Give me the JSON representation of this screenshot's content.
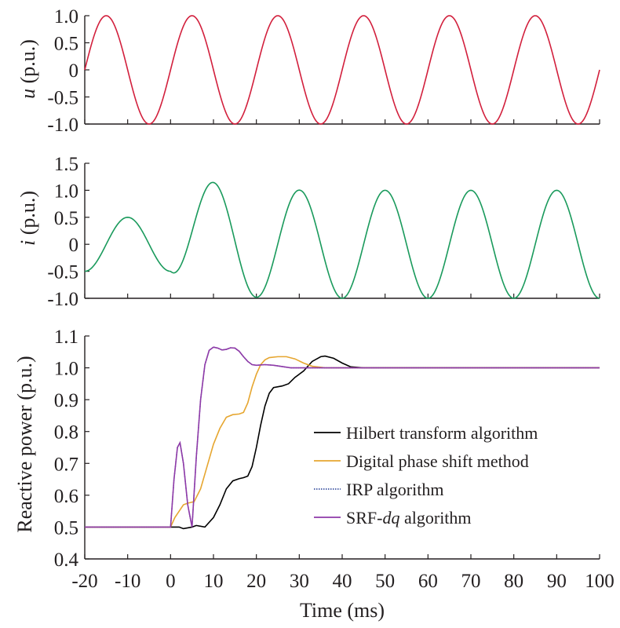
{
  "colors": {
    "voltage": "#d21f3c",
    "current": "#1a9a5c",
    "hilbert": "#000000",
    "digital_phase_shift": "#e6a630",
    "irp": "#1f3a93",
    "srf_dq": "#8e3aa8",
    "axis": "#231f20"
  },
  "chart_data": [
    {
      "type": "line",
      "id": "voltage",
      "ylabel_var": "u",
      "ylabel_unit": " (p.u.)",
      "ylim": [
        -1.0,
        1.0
      ],
      "xlim": [
        -20,
        100
      ],
      "yticks": [
        "1.0",
        "0.5",
        "0",
        "-0.5",
        "-1.0"
      ],
      "series": [
        {
          "description_peaks": "sinusoid, amplitude 1.0, period 20 ms, peaks at -15, 5, 25, 45, 65, 85 ms",
          "amplitude": 1.0,
          "period_ms": 20,
          "first_peak_ms": -15
        }
      ]
    },
    {
      "type": "line",
      "id": "current",
      "ylabel_var": "i",
      "ylabel_unit": " (p.u.)",
      "ylim": [
        -1.0,
        1.5
      ],
      "xlim": [
        -20,
        100
      ],
      "yticks": [
        "1.5",
        "1.0",
        "0.5",
        "0",
        "-0.5",
        "-1.0"
      ],
      "series": [
        {
          "amplitude_before_step": 0.5,
          "amplitude_after_step": 1.0,
          "step_time_ms": 0,
          "period_ms": 20,
          "peak_before_step_ms": -10,
          "peaks_after_step_ms": [
            10,
            30,
            50,
            70,
            90
          ],
          "overshoot_peak": 1.05
        }
      ]
    },
    {
      "type": "line",
      "id": "reactive_power",
      "ylabel": "Reactive power (p.u.)",
      "xlabel": "Time (ms)",
      "ylim": [
        0.4,
        1.1
      ],
      "xlim": [
        -20,
        100
      ],
      "yticks": [
        "1.1",
        "1.0",
        "0.9",
        "0.8",
        "0.7",
        "0.6",
        "0.5",
        "0.4"
      ],
      "xticks": [
        "-20",
        "-10",
        "0",
        "10",
        "20",
        "30",
        "40",
        "50",
        "60",
        "70",
        "80",
        "90",
        "100"
      ],
      "legend_position": "lower-right",
      "series": [
        {
          "key": "hilbert",
          "name": "Hilbert transform algorithm",
          "points": [
            [
              -20,
              0.5
            ],
            [
              0,
              0.5
            ],
            [
              2,
              0.5
            ],
            [
              3,
              0.495
            ],
            [
              5,
              0.5
            ],
            [
              6,
              0.505
            ],
            [
              8,
              0.5
            ],
            [
              10,
              0.53
            ],
            [
              11.5,
              0.57
            ],
            [
              13,
              0.62
            ],
            [
              14.5,
              0.645
            ],
            [
              16,
              0.652
            ],
            [
              17,
              0.655
            ],
            [
              18,
              0.66
            ],
            [
              19,
              0.69
            ],
            [
              20,
              0.75
            ],
            [
              21,
              0.82
            ],
            [
              22,
              0.88
            ],
            [
              23,
              0.92
            ],
            [
              24,
              0.938
            ],
            [
              26,
              0.943
            ],
            [
              27.5,
              0.95
            ],
            [
              29,
              0.97
            ],
            [
              31,
              0.99
            ],
            [
              33,
              1.02
            ],
            [
              35,
              1.035
            ],
            [
              36,
              1.037
            ],
            [
              38,
              1.03
            ],
            [
              40,
              1.015
            ],
            [
              42,
              1.003
            ],
            [
              45,
              1.0
            ],
            [
              100,
              1.0
            ]
          ]
        },
        {
          "key": "digital_phase_shift",
          "name": "Digital phase shift method",
          "points": [
            [
              -20,
              0.5
            ],
            [
              0,
              0.5
            ],
            [
              1,
              0.53
            ],
            [
              2,
              0.55
            ],
            [
              3,
              0.57
            ],
            [
              4,
              0.575
            ],
            [
              5.5,
              0.58
            ],
            [
              7,
              0.62
            ],
            [
              8.5,
              0.69
            ],
            [
              10,
              0.76
            ],
            [
              11.5,
              0.81
            ],
            [
              13,
              0.845
            ],
            [
              14.5,
              0.853
            ],
            [
              16,
              0.855
            ],
            [
              17,
              0.86
            ],
            [
              18,
              0.89
            ],
            [
              19,
              0.94
            ],
            [
              20,
              0.98
            ],
            [
              21,
              1.01
            ],
            [
              22,
              1.025
            ],
            [
              23,
              1.032
            ],
            [
              25,
              1.035
            ],
            [
              27,
              1.035
            ],
            [
              29,
              1.028
            ],
            [
              31,
              1.015
            ],
            [
              33,
              1.005
            ],
            [
              36,
              1.0
            ],
            [
              100,
              1.0
            ]
          ]
        },
        {
          "key": "irp",
          "name": "IRP algorithm",
          "points": [
            [
              -20,
              0.5
            ],
            [
              0,
              0.5
            ],
            [
              0.8,
              0.65
            ],
            [
              1.6,
              0.75
            ],
            [
              2.2,
              0.765
            ],
            [
              3,
              0.7
            ],
            [
              4,
              0.57
            ],
            [
              5,
              0.5
            ],
            [
              6,
              0.72
            ],
            [
              7,
              0.9
            ],
            [
              8,
              1.01
            ],
            [
              9,
              1.055
            ],
            [
              10,
              1.065
            ],
            [
              11,
              1.062
            ],
            [
              12,
              1.056
            ],
            [
              13,
              1.058
            ],
            [
              14,
              1.063
            ],
            [
              15,
              1.062
            ],
            [
              16,
              1.052
            ],
            [
              17,
              1.035
            ],
            [
              18,
              1.02
            ],
            [
              19,
              1.01
            ],
            [
              20,
              1.008
            ],
            [
              22,
              1.01
            ],
            [
              24,
              1.008
            ],
            [
              26,
              1.004
            ],
            [
              28,
              1.0
            ],
            [
              30,
              1.0
            ],
            [
              100,
              1.0
            ]
          ]
        },
        {
          "key": "srf_dq",
          "name_prefix": "SRF-",
          "name_italic": "dq",
          "name_suffix": " algorithm",
          "points": [
            [
              -20,
              0.5
            ],
            [
              0,
              0.5
            ],
            [
              0.8,
              0.65
            ],
            [
              1.6,
              0.75
            ],
            [
              2.2,
              0.765
            ],
            [
              3,
              0.7
            ],
            [
              4,
              0.57
            ],
            [
              5,
              0.5
            ],
            [
              6,
              0.72
            ],
            [
              7,
              0.9
            ],
            [
              8,
              1.01
            ],
            [
              9,
              1.055
            ],
            [
              10,
              1.065
            ],
            [
              11,
              1.062
            ],
            [
              12,
              1.056
            ],
            [
              13,
              1.058
            ],
            [
              14,
              1.063
            ],
            [
              15,
              1.062
            ],
            [
              16,
              1.052
            ],
            [
              17,
              1.035
            ],
            [
              18,
              1.02
            ],
            [
              19,
              1.01
            ],
            [
              20,
              1.008
            ],
            [
              22,
              1.01
            ],
            [
              24,
              1.008
            ],
            [
              26,
              1.004
            ],
            [
              28,
              1.0
            ],
            [
              30,
              1.0
            ],
            [
              100,
              1.0
            ]
          ]
        }
      ]
    }
  ]
}
